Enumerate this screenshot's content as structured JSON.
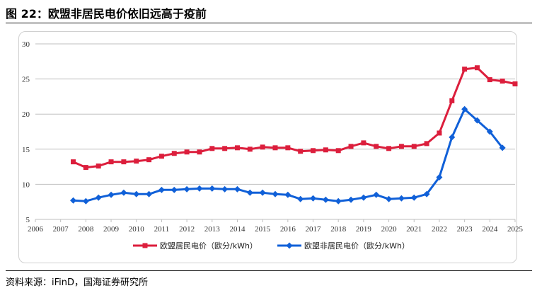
{
  "figure_title": "图 22：欧盟非居民电价依旧远高于疫前",
  "source": "资料来源：iFinD，国海证券研究所",
  "colors": {
    "residential": "#dc1e3c",
    "non_residential": "#1060d8",
    "axis": "#bfbfbf"
  },
  "chart_data": {
    "type": "line",
    "title": "",
    "xlabel": "",
    "ylabel": "",
    "xlim": [
      2006,
      2025
    ],
    "ylim": [
      5,
      30
    ],
    "x_ticks": [
      "2006",
      "2007",
      "2008",
      "2009",
      "2010",
      "2011",
      "2012",
      "2013",
      "2014",
      "2015",
      "2016",
      "2017",
      "2018",
      "2019",
      "2020",
      "2021",
      "2022",
      "2023",
      "2024",
      "2025"
    ],
    "y_ticks": [
      "5",
      "10",
      "15",
      "20",
      "25",
      "30"
    ],
    "grid": "horizontal",
    "legend_position": "bottom",
    "series": [
      {
        "name": "欧盟居民电价（欧分/kWh）",
        "color_key": "residential",
        "marker": "square",
        "x": [
          2007.5,
          2008,
          2008.5,
          2009,
          2009.5,
          2010,
          2010.5,
          2011,
          2011.5,
          2012,
          2012.5,
          2013,
          2013.5,
          2014,
          2014.5,
          2015,
          2015.5,
          2016,
          2016.5,
          2017,
          2017.5,
          2018,
          2018.5,
          2019,
          2019.5,
          2020,
          2020.5,
          2021,
          2021.5,
          2022,
          2022.5,
          2023,
          2023.5,
          2024,
          2024.5,
          2025
        ],
        "values": [
          13.2,
          12.4,
          12.6,
          13.2,
          13.2,
          13.3,
          13.5,
          14.0,
          14.4,
          14.6,
          14.6,
          15.1,
          15.1,
          15.2,
          15.0,
          15.3,
          15.2,
          15.2,
          14.7,
          14.8,
          14.9,
          14.8,
          15.4,
          15.9,
          15.4,
          15.1,
          15.4,
          15.4,
          15.8,
          17.3,
          21.9,
          26.4,
          26.6,
          24.9,
          24.7,
          24.3
        ]
      },
      {
        "name": "欧盟非居民电价（欧分/kWh）",
        "color_key": "non_residential",
        "marker": "diamond",
        "x": [
          2007.5,
          2008,
          2008.5,
          2009,
          2009.5,
          2010,
          2010.5,
          2011,
          2011.5,
          2012,
          2012.5,
          2013,
          2013.5,
          2014,
          2014.5,
          2015,
          2015.5,
          2016,
          2016.5,
          2017,
          2017.5,
          2018,
          2018.5,
          2019,
          2019.5,
          2020,
          2020.5,
          2021,
          2021.5,
          2022,
          2022.5,
          2023,
          2023.5,
          2024,
          2024.5
        ],
        "values": [
          7.7,
          7.6,
          8.1,
          8.5,
          8.8,
          8.6,
          8.6,
          9.2,
          9.2,
          9.3,
          9.4,
          9.4,
          9.3,
          9.3,
          8.8,
          8.8,
          8.6,
          8.5,
          7.9,
          8.0,
          7.8,
          7.6,
          7.8,
          8.1,
          8.5,
          7.9,
          8.0,
          8.1,
          8.6,
          11.0,
          16.7,
          20.7,
          19.1,
          17.5,
          15.2
        ]
      }
    ]
  }
}
